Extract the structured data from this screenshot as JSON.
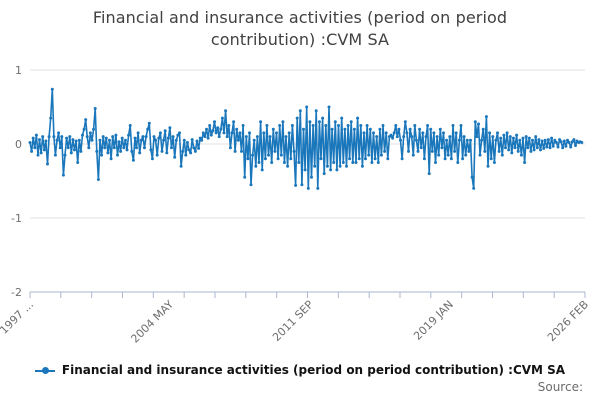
{
  "chart": {
    "title": "Financial and insurance activities (period on period contribution) :CVM SA",
    "legend_label": "Financial and insurance activities (period on period contribution) :CVM SA",
    "source_label": "Source:",
    "colors": {
      "series_line": "#1b77bb",
      "gridline": "#e2e2e2",
      "axis": "#aab7cd",
      "tick_label": "#6e6e6e",
      "title_text": "#414042"
    }
  },
  "chart_data": {
    "type": "line",
    "title": "Financial and insurance activities (period on period contribution) :CVM SA",
    "xlabel": "",
    "ylabel": "",
    "ylim": [
      -2,
      1
    ],
    "grid": true,
    "legend_position": "bottom",
    "marker": "dot",
    "frequency": "monthly",
    "x_start": "1997 JAN",
    "x_axis_span_months": 350,
    "y_ticks": [
      1,
      0,
      -1,
      -2
    ],
    "x_ticks": [
      {
        "label": "1997 ...",
        "month_index": 0
      },
      {
        "label": "2004 MAY",
        "month_index": 88
      },
      {
        "label": "2011 SEP",
        "month_index": 176
      },
      {
        "label": "2019 JAN",
        "month_index": 264
      },
      {
        "label": "2026 FEB",
        "month_index": 349
      }
    ],
    "minor_tick_count": 19,
    "series": [
      {
        "name": "Financial and insurance activities (period on period contribution) :CVM SA",
        "start": "1997 JAN",
        "values": [
          0.02,
          -0.1,
          0.08,
          -0.05,
          0.12,
          -0.15,
          0.06,
          -0.12,
          0.1,
          -0.08,
          0.04,
          -0.27,
          0.1,
          0.35,
          0.74,
          0.1,
          -0.15,
          0.05,
          0.15,
          -0.05,
          0.1,
          -0.42,
          -0.15,
          0.08,
          -0.05,
          0.1,
          -0.12,
          0.06,
          -0.08,
          0.04,
          -0.25,
          0.05,
          -0.1,
          0.12,
          0.2,
          0.33,
          0.1,
          -0.05,
          0.15,
          0.05,
          0.2,
          0.48,
          -0.1,
          -0.48,
          0.05,
          -0.15,
          0.1,
          -0.05,
          0.08,
          -0.12,
          0.05,
          -0.2,
          0.1,
          -0.05,
          0.12,
          -0.15,
          0.03,
          -0.1,
          0.08,
          -0.05,
          0.05,
          -0.08,
          0.12,
          0.25,
          -0.1,
          -0.22,
          0.08,
          -0.05,
          0.15,
          -0.12,
          0.05,
          0.1,
          -0.05,
          0.1,
          0.2,
          0.28,
          -0.08,
          -0.2,
          0.1,
          0.05,
          -0.15,
          0.08,
          0.15,
          -0.1,
          0.05,
          0.18,
          -0.12,
          0.08,
          0.22,
          -0.05,
          0.1,
          -0.18,
          0.05,
          0.12,
          0.15,
          -0.3,
          -0.1,
          0.05,
          -0.15,
          0.02,
          -0.08,
          -0.12,
          0.06,
          -0.05,
          -0.1,
          0.04,
          -0.06,
          0.08,
          0.05,
          0.15,
          0.1,
          0.2,
          0.08,
          0.25,
          0.12,
          0.18,
          0.3,
          0.15,
          0.22,
          0.1,
          0.2,
          0.35,
          0.15,
          0.45,
          0.1,
          0.25,
          -0.05,
          0.15,
          0.3,
          -0.1,
          0.2,
          0.05,
          0.15,
          -0.1,
          0.25,
          -0.45,
          0.1,
          -0.2,
          0.15,
          -0.55,
          -0.15,
          0.05,
          -0.3,
          0.1,
          -0.25,
          0.3,
          -0.35,
          0.15,
          -0.2,
          0.25,
          -0.15,
          0.1,
          -0.25,
          0.2,
          -0.1,
          0.15,
          -0.2,
          0.25,
          -0.15,
          0.3,
          -0.25,
          0.1,
          -0.3,
          0.15,
          -0.2,
          0.25,
          -0.1,
          -0.56,
          0.35,
          -0.25,
          0.45,
          -0.55,
          0.2,
          -0.35,
          0.5,
          -0.6,
          0.3,
          -0.45,
          0.25,
          -0.3,
          0.45,
          -0.6,
          0.3,
          -0.2,
          0.35,
          -0.4,
          0.25,
          -0.3,
          0.5,
          -0.35,
          0.2,
          -0.25,
          0.3,
          -0.35,
          0.25,
          -0.3,
          0.35,
          -0.25,
          0.2,
          -0.3,
          0.25,
          -0.2,
          0.3,
          -0.25,
          0.2,
          -0.25,
          0.35,
          -0.2,
          0.25,
          -0.3,
          0.15,
          -0.2,
          0.25,
          -0.15,
          0.2,
          -0.25,
          0.15,
          -0.2,
          0.1,
          -0.25,
          0.2,
          -0.15,
          0.25,
          -0.1,
          0.15,
          -0.2,
          0.1,
          0.12,
          0.08,
          0.15,
          0.25,
          0.1,
          0.2,
          0.05,
          -0.2,
          0.1,
          0.3,
          0.15,
          -0.1,
          0.2,
          0.1,
          -0.15,
          0.25,
          0.05,
          -0.1,
          0.2,
          -0.05,
          0.15,
          -0.2,
          0.1,
          0.25,
          -0.4,
          0.2,
          -0.1,
          0.15,
          -0.25,
          0.1,
          -0.15,
          0.2,
          -0.05,
          0.15,
          -0.2,
          0.05,
          -0.15,
          0.1,
          -0.2,
          0.25,
          -0.1,
          0.15,
          -0.25,
          0.05,
          0.25,
          -0.2,
          0.1,
          -0.15,
          0.05,
          -0.1,
          0.05,
          -0.45,
          -0.6,
          0.3,
          0.1,
          0.27,
          -0.15,
          0.05,
          0.2,
          -0.1,
          0.37,
          -0.3,
          0.15,
          -0.2,
          0.1,
          -0.25,
          0.05,
          0.15,
          -0.1,
          0.08,
          -0.15,
          0.12,
          -0.05,
          0.15,
          -0.08,
          0.1,
          -0.12,
          0.08,
          -0.05,
          0.12,
          -0.1,
          0.05,
          -0.15,
          0.08,
          -0.25,
          0.1,
          -0.05,
          0.08,
          -0.1,
          0.05,
          -0.08,
          0.1,
          -0.05,
          0.06,
          -0.08,
          0.04,
          -0.06,
          0.05,
          -0.04,
          0.06,
          -0.05,
          0.08,
          -0.03,
          0.05,
          0.02,
          -0.04,
          0.06,
          0.03,
          -0.05,
          0.04,
          -0.03,
          0.05,
          0.02,
          -0.04,
          0.03,
          0.06,
          -0.02,
          0.04,
          0.02,
          0.03,
          0.02
        ]
      }
    ]
  }
}
